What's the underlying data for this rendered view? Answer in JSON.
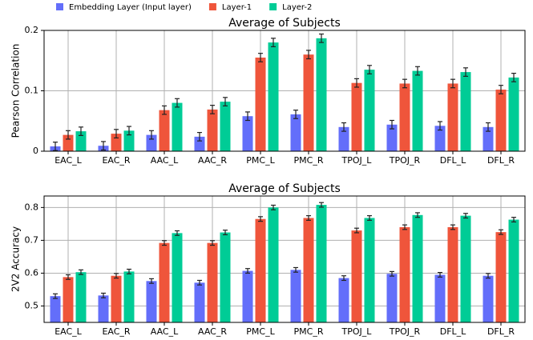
{
  "chart_data": [
    {
      "type": "bar",
      "title": "Average of Subjects",
      "ylabel": "Pearson Correlation",
      "categories": [
        "EAC_L",
        "EAC_R",
        "AAC_L",
        "AAC_R",
        "PMC_L",
        "PMC_R",
        "TPOJ_L",
        "TPOJ_R",
        "DFL_L",
        "DFL_R"
      ],
      "series": [
        {
          "name": "Embedding Layer (Input layer)",
          "color": "#636efa",
          "values": [
            0.008,
            0.009,
            0.027,
            0.024,
            0.058,
            0.061,
            0.04,
            0.044,
            0.042,
            0.04
          ],
          "errors": [
            0.007,
            0.007,
            0.007,
            0.007,
            0.007,
            0.007,
            0.007,
            0.007,
            0.007,
            0.007
          ]
        },
        {
          "name": "Layer-1",
          "color": "#ef553b",
          "values": [
            0.027,
            0.029,
            0.068,
            0.069,
            0.155,
            0.16,
            0.113,
            0.112,
            0.112,
            0.102
          ],
          "errors": [
            0.007,
            0.007,
            0.007,
            0.007,
            0.007,
            0.007,
            0.007,
            0.007,
            0.007,
            0.007
          ]
        },
        {
          "name": "Layer-2",
          "color": "#00cc96",
          "values": [
            0.033,
            0.034,
            0.08,
            0.082,
            0.18,
            0.187,
            0.135,
            0.133,
            0.131,
            0.122
          ],
          "errors": [
            0.007,
            0.007,
            0.007,
            0.007,
            0.007,
            0.007,
            0.007,
            0.007,
            0.007,
            0.007
          ]
        }
      ],
      "ylim": [
        0,
        0.2
      ],
      "yticks": [
        0,
        0.1,
        0.2
      ],
      "grid": true,
      "legend": "top"
    },
    {
      "type": "bar",
      "title": "Average of Subjects",
      "ylabel": "2V2 Accuracy",
      "categories": [
        "EAC_L",
        "EAC_R",
        "AAC_L",
        "AAC_R",
        "PMC_L",
        "PMC_R",
        "TPOJ_L",
        "TPOJ_R",
        "DFL_L",
        "DFL_R"
      ],
      "series": [
        {
          "color": "#636efa",
          "values": [
            0.53,
            0.532,
            0.576,
            0.571,
            0.607,
            0.61,
            0.585,
            0.598,
            0.595,
            0.592
          ],
          "errors": [
            0.007,
            0.007,
            0.007,
            0.007,
            0.007,
            0.007,
            0.007,
            0.007,
            0.007,
            0.007
          ]
        },
        {
          "color": "#ef553b",
          "values": [
            0.588,
            0.592,
            0.692,
            0.692,
            0.765,
            0.768,
            0.73,
            0.74,
            0.74,
            0.725
          ],
          "errors": [
            0.007,
            0.007,
            0.007,
            0.007,
            0.007,
            0.007,
            0.007,
            0.007,
            0.007,
            0.007
          ]
        },
        {
          "color": "#00cc96",
          "values": [
            0.603,
            0.605,
            0.722,
            0.724,
            0.8,
            0.808,
            0.768,
            0.777,
            0.775,
            0.763
          ],
          "errors": [
            0.007,
            0.007,
            0.007,
            0.007,
            0.007,
            0.007,
            0.007,
            0.007,
            0.007,
            0.007
          ]
        }
      ],
      "ylim": [
        0.45,
        0.835
      ],
      "yticks": [
        0.5,
        0.6,
        0.7,
        0.8
      ],
      "grid": true
    }
  ]
}
